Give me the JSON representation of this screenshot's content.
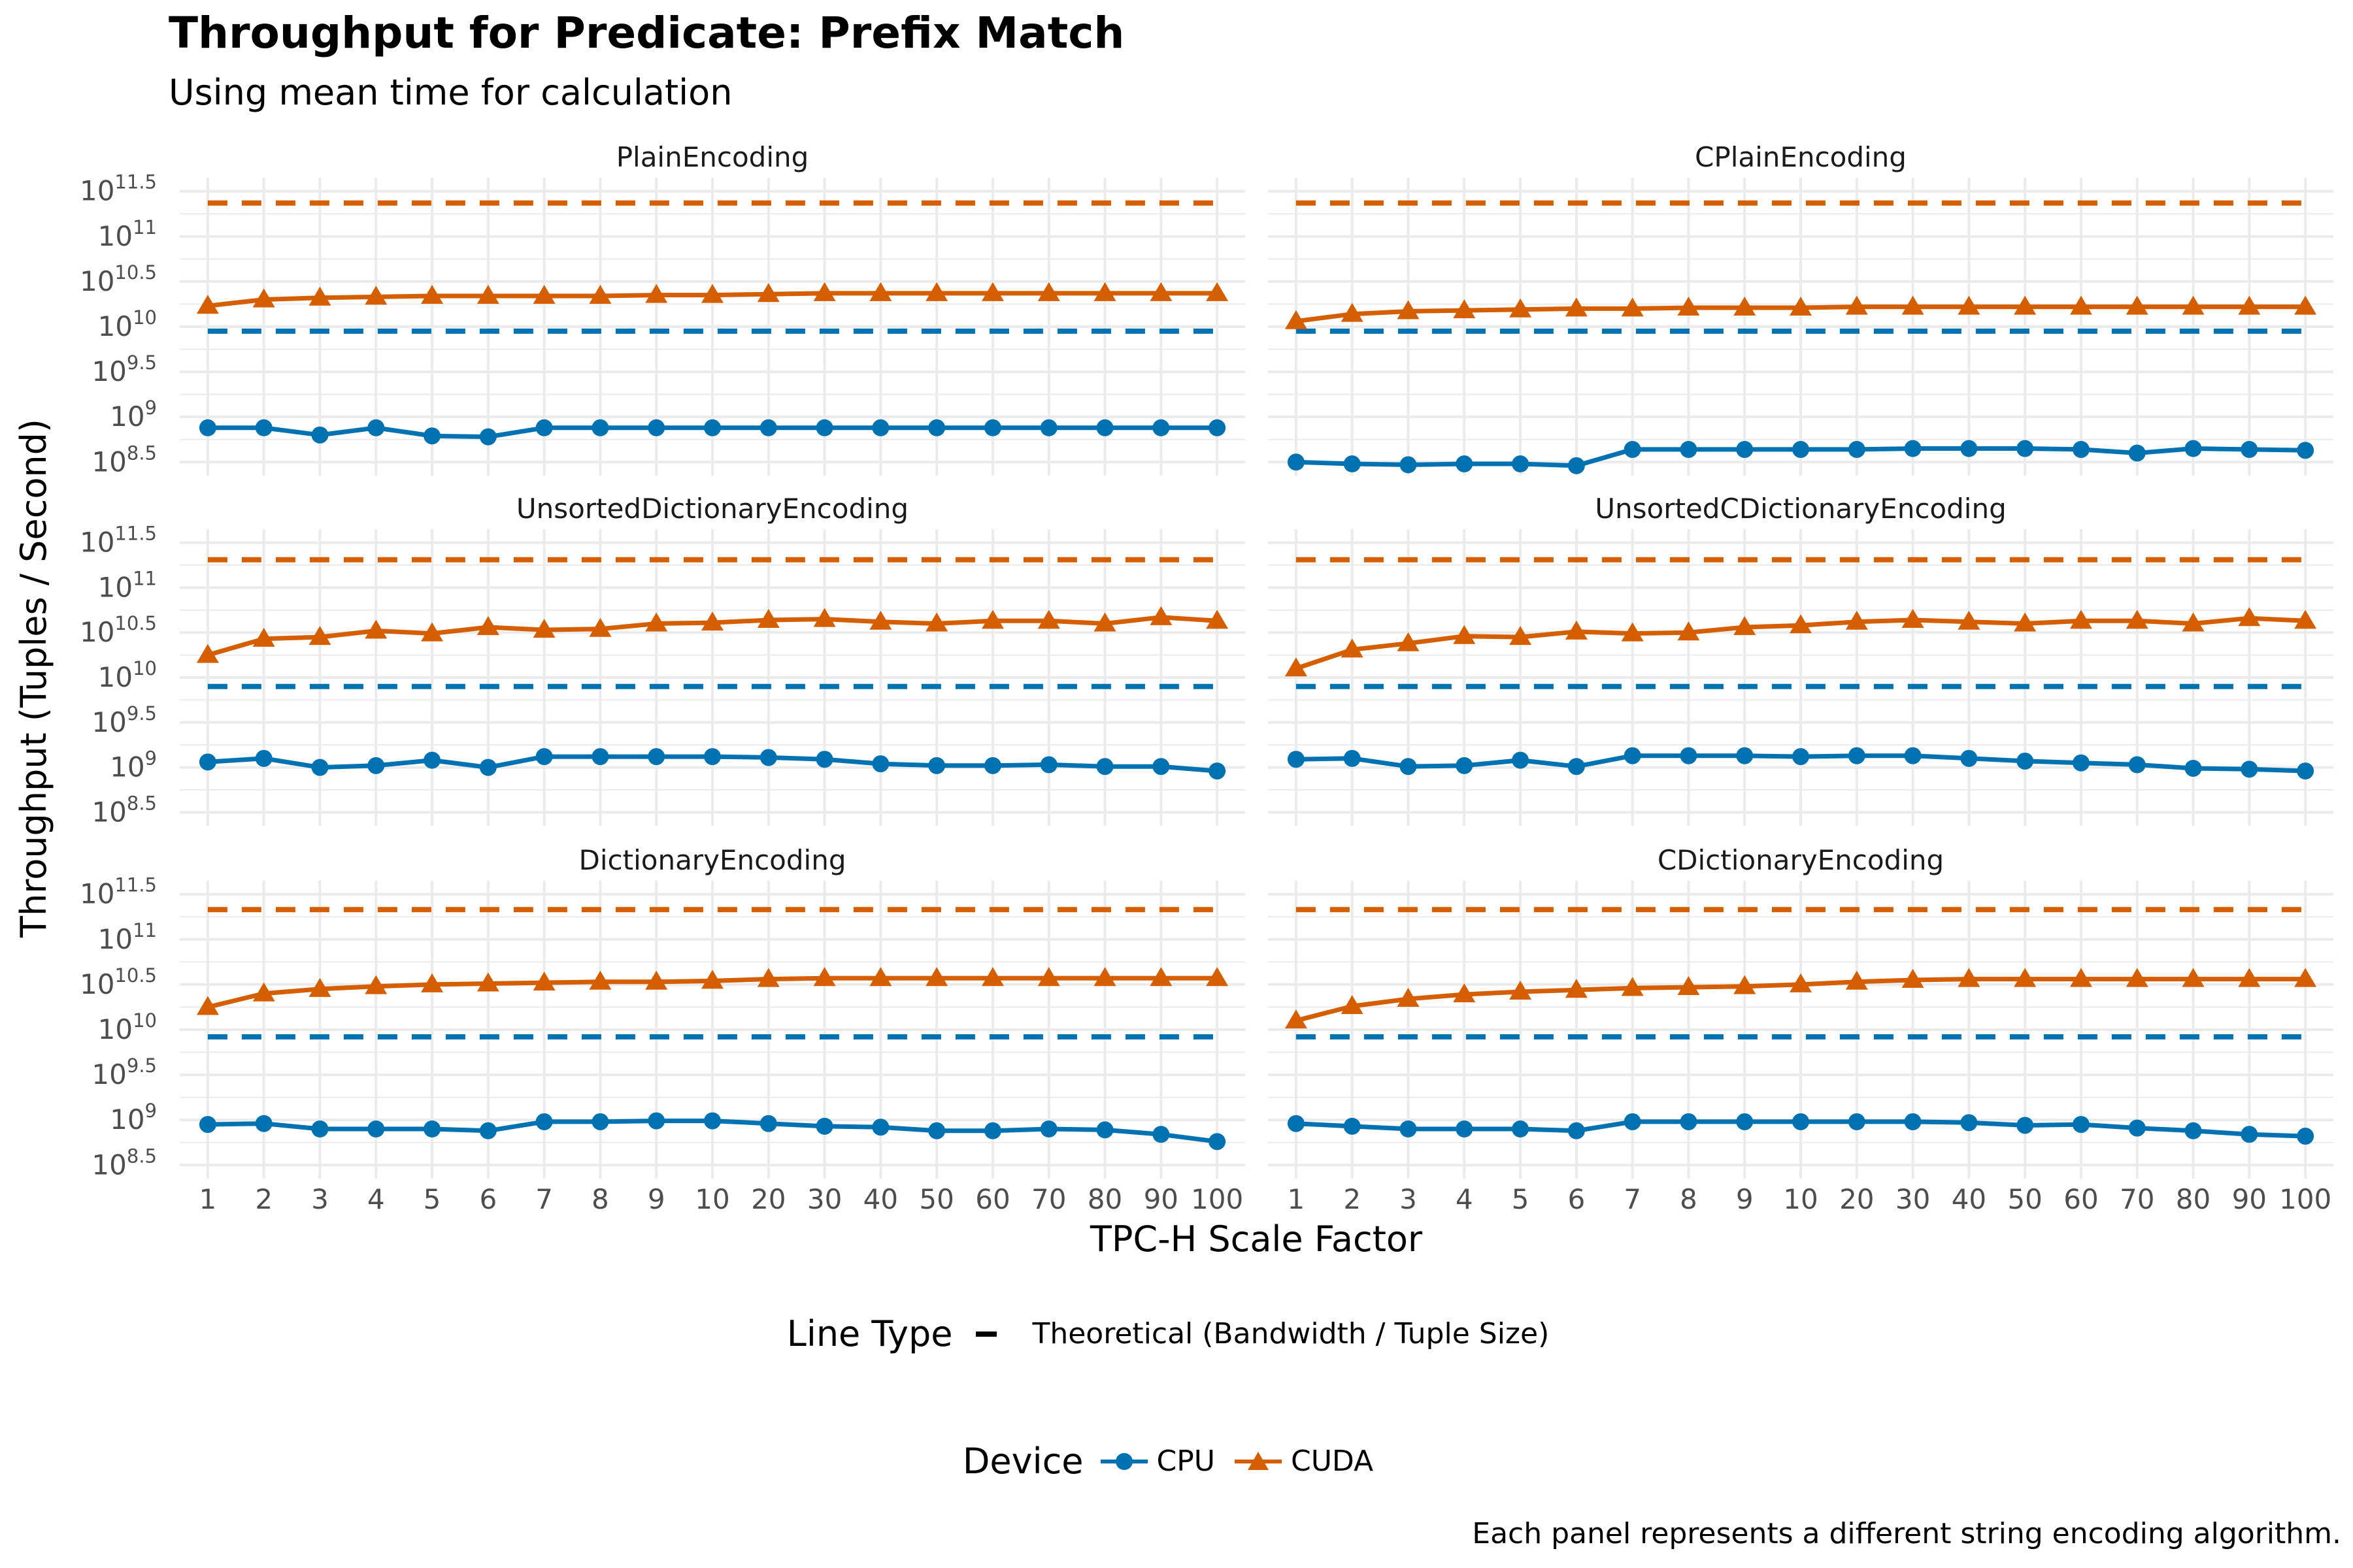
{
  "title": "Throughput for Predicate: Prefix Match",
  "subtitle": "Using mean time for calculation",
  "caption": "Each panel represents a different string encoding algorithm.",
  "colors": {
    "cpu": "#0072B2",
    "cuda": "#D55E00",
    "grid": "#ebebeb",
    "text": "#4d4d4d"
  },
  "legend": {
    "linetype_title": "Line Type",
    "linetype_label": "Theoretical (Bandwidth / Tuple Size)",
    "device_title": "Device",
    "device_labels": [
      "CPU",
      "CUDA"
    ]
  },
  "chart_data": {
    "type": "line",
    "title": "Throughput for Predicate: Prefix Match",
    "subtitle": "Using mean time for calculation",
    "xlabel": "TPC-H Scale Factor",
    "ylabel": "Throughput (Tuples / Second)",
    "y_scale": "log10",
    "ylim": [
      8.35,
      11.65
    ],
    "y_tick_labels": [
      {
        "base": "10",
        "exp": "8.5"
      },
      {
        "base": "10",
        "exp": "9"
      },
      {
        "base": "10",
        "exp": "9.5"
      },
      {
        "base": "10",
        "exp": "10"
      },
      {
        "base": "10",
        "exp": "10.5"
      },
      {
        "base": "10",
        "exp": "11"
      },
      {
        "base": "10",
        "exp": "11.5"
      }
    ],
    "y_ticks": [
      8.5,
      9,
      9.5,
      10,
      10.5,
      11,
      11.5
    ],
    "categories": [
      "1",
      "2",
      "3",
      "4",
      "5",
      "6",
      "7",
      "8",
      "9",
      "10",
      "20",
      "30",
      "40",
      "50",
      "60",
      "70",
      "80",
      "90",
      "100"
    ],
    "legend_position": "bottom",
    "grid": true,
    "panels": [
      {
        "name": "PlainEncoding",
        "theoretical": {
          "CPU": 9.95,
          "CUDA": 11.37
        },
        "series": [
          {
            "name": "CPU",
            "values": [
              8.88,
              8.88,
              8.8,
              8.88,
              8.79,
              8.78,
              8.88,
              8.88,
              8.88,
              8.88,
              8.88,
              8.88,
              8.88,
              8.88,
              8.88,
              8.88,
              8.88,
              8.88,
              8.88
            ]
          },
          {
            "name": "CUDA",
            "values": [
              10.23,
              10.3,
              10.32,
              10.33,
              10.34,
              10.34,
              10.34,
              10.34,
              10.35,
              10.35,
              10.36,
              10.37,
              10.37,
              10.37,
              10.37,
              10.37,
              10.37,
              10.37,
              10.37
            ]
          }
        ]
      },
      {
        "name": "CPlainEncoding",
        "theoretical": {
          "CPU": 9.95,
          "CUDA": 11.37
        },
        "series": [
          {
            "name": "CPU",
            "values": [
              8.5,
              8.48,
              8.47,
              8.48,
              8.48,
              8.46,
              8.64,
              8.64,
              8.64,
              8.64,
              8.64,
              8.65,
              8.65,
              8.65,
              8.64,
              8.6,
              8.65,
              8.64,
              8.63
            ]
          },
          {
            "name": "CUDA",
            "values": [
              10.06,
              10.14,
              10.17,
              10.18,
              10.19,
              10.2,
              10.2,
              10.21,
              10.21,
              10.21,
              10.22,
              10.22,
              10.22,
              10.22,
              10.22,
              10.22,
              10.22,
              10.22,
              10.22
            ]
          }
        ]
      },
      {
        "name": "UnsortedDictionaryEncoding",
        "theoretical": {
          "CPU": 9.9,
          "CUDA": 11.31
        },
        "series": [
          {
            "name": "CPU",
            "values": [
              9.06,
              9.1,
              9.0,
              9.02,
              9.08,
              9.0,
              9.12,
              9.12,
              9.12,
              9.12,
              9.11,
              9.09,
              9.04,
              9.02,
              9.02,
              9.03,
              9.01,
              9.01,
              8.96
            ]
          },
          {
            "name": "CUDA",
            "values": [
              10.25,
              10.43,
              10.45,
              10.52,
              10.49,
              10.56,
              10.53,
              10.54,
              10.6,
              10.61,
              10.64,
              10.65,
              10.62,
              10.6,
              10.63,
              10.63,
              10.6,
              10.67,
              10.63
            ]
          }
        ]
      },
      {
        "name": "UnsortedCDictionaryEncoding",
        "theoretical": {
          "CPU": 9.9,
          "CUDA": 11.31
        },
        "series": [
          {
            "name": "CPU",
            "values": [
              9.09,
              9.1,
              9.01,
              9.02,
              9.08,
              9.01,
              9.13,
              9.13,
              9.13,
              9.12,
              9.13,
              9.13,
              9.1,
              9.07,
              9.05,
              9.03,
              8.99,
              8.98,
              8.96
            ]
          },
          {
            "name": "CUDA",
            "values": [
              10.1,
              10.31,
              10.38,
              10.46,
              10.45,
              10.51,
              10.49,
              10.5,
              10.56,
              10.58,
              10.62,
              10.64,
              10.62,
              10.6,
              10.63,
              10.63,
              10.6,
              10.66,
              10.63
            ]
          }
        ]
      },
      {
        "name": "DictionaryEncoding",
        "theoretical": {
          "CPU": 9.92,
          "CUDA": 11.33
        },
        "series": [
          {
            "name": "CPU",
            "values": [
              8.95,
              8.96,
              8.9,
              8.9,
              8.9,
              8.88,
              8.98,
              8.98,
              8.99,
              8.99,
              8.96,
              8.93,
              8.92,
              8.88,
              8.88,
              8.9,
              8.89,
              8.84,
              8.76
            ]
          },
          {
            "name": "CUDA",
            "values": [
              10.25,
              10.4,
              10.45,
              10.48,
              10.5,
              10.51,
              10.52,
              10.53,
              10.53,
              10.54,
              10.56,
              10.57,
              10.57,
              10.57,
              10.57,
              10.57,
              10.57,
              10.57,
              10.57
            ]
          }
        ]
      },
      {
        "name": "CDictionaryEncoding",
        "theoretical": {
          "CPU": 9.92,
          "CUDA": 11.33
        },
        "series": [
          {
            "name": "CPU",
            "values": [
              8.96,
              8.93,
              8.9,
              8.9,
              8.9,
              8.88,
              8.98,
              8.98,
              8.98,
              8.98,
              8.98,
              8.98,
              8.97,
              8.94,
              8.95,
              8.91,
              8.88,
              8.84,
              8.82
            ]
          },
          {
            "name": "CUDA",
            "values": [
              10.1,
              10.26,
              10.34,
              10.39,
              10.42,
              10.44,
              10.46,
              10.47,
              10.48,
              10.5,
              10.53,
              10.55,
              10.56,
              10.56,
              10.56,
              10.56,
              10.56,
              10.56,
              10.56
            ]
          }
        ]
      }
    ]
  }
}
